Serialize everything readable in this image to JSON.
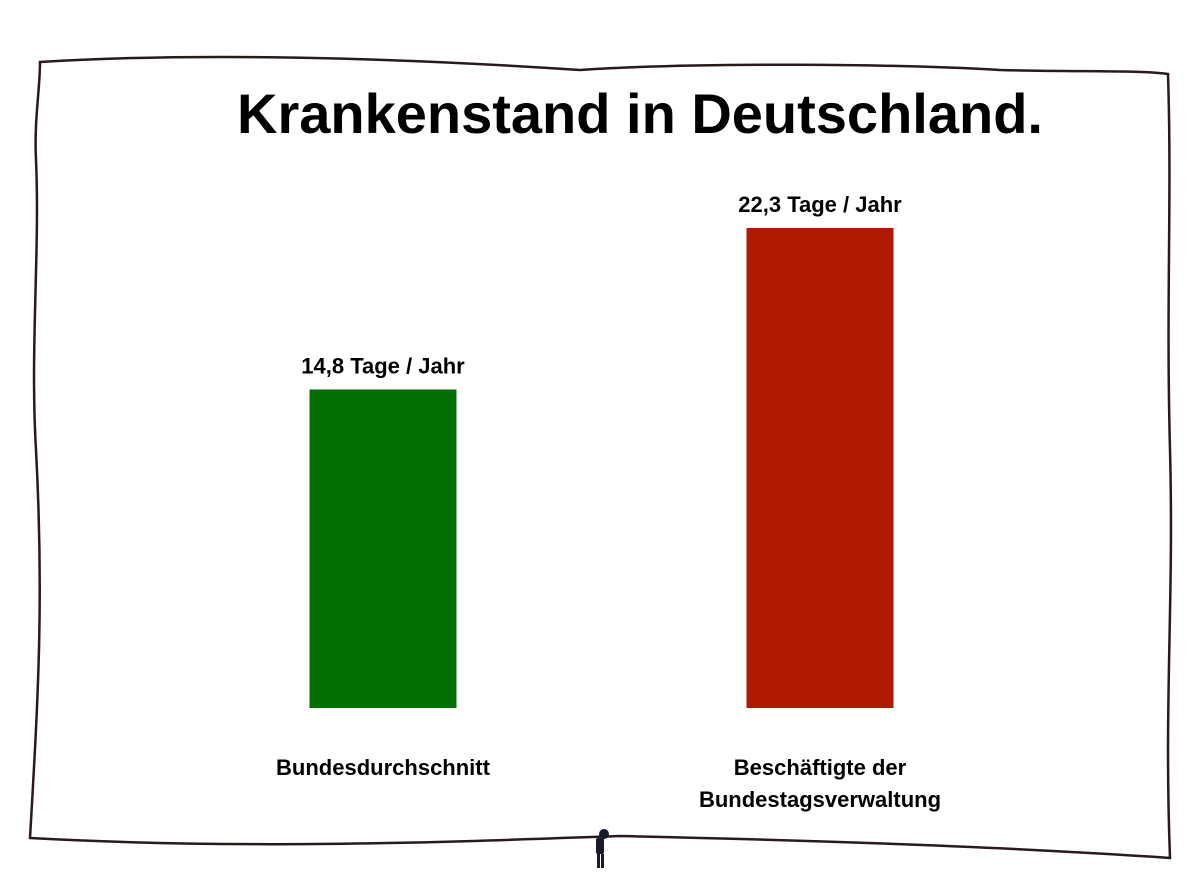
{
  "chart_data": {
    "type": "bar",
    "title": "Krankenstand in Deutschland.",
    "categories": [
      "Bundesdurchschnitt",
      "Beschäftigte der Bundestagsverwaltung"
    ],
    "series": [
      {
        "values": [
          14.8,
          22.3
        ],
        "value_labels": [
          "14,8 Tage / Jahr",
          "22,3 Tage / Jahr"
        ],
        "colors": [
          "#037003",
          "#b01a02"
        ]
      }
    ]
  }
}
